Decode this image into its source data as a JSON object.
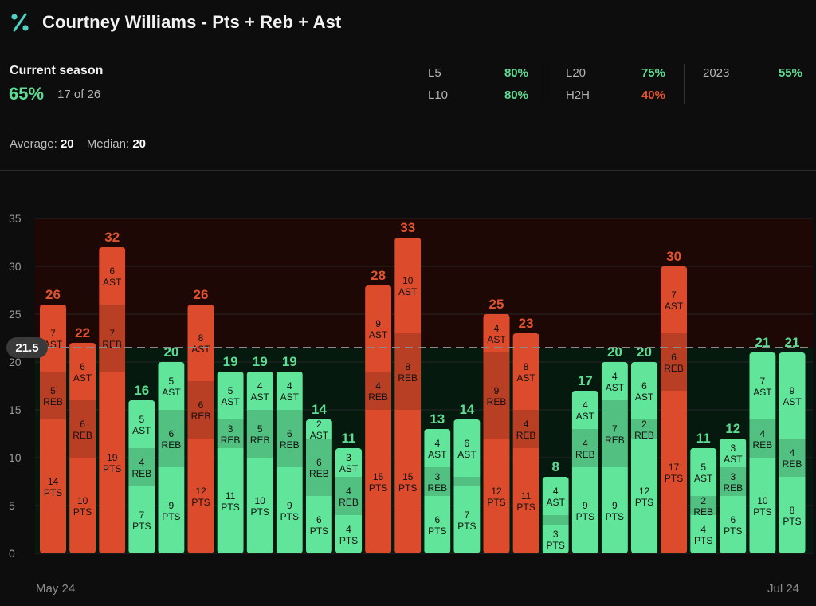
{
  "header": {
    "title": "Courtney Williams - Pts + Reb + Ast",
    "icon": "percent-icon"
  },
  "summary": {
    "season_label": "Current season",
    "season_pct": "65%",
    "season_count": "17 of 26",
    "stats": [
      {
        "label": "L5",
        "value": "80%",
        "status": "good"
      },
      {
        "label": "L10",
        "value": "80%",
        "status": "good"
      },
      {
        "label": "L20",
        "value": "75%",
        "status": "good"
      },
      {
        "label": "H2H",
        "value": "40%",
        "status": "bad"
      },
      {
        "label": "2023",
        "value": "55%",
        "status": "good"
      }
    ]
  },
  "averages": {
    "average_label": "Average:",
    "average_value": "20",
    "median_label": "Median:",
    "median_value": "20"
  },
  "chart_data": {
    "type": "bar",
    "stacked": true,
    "ylim": [
      0,
      35
    ],
    "yticks": [
      0,
      5,
      10,
      15,
      20,
      25,
      30,
      35
    ],
    "threshold": 21.5,
    "threshold_label": "21.5",
    "x_start_label": "May 24",
    "x_end_label": "Jul 24",
    "segment_labels": {
      "pts": "PTS",
      "reb": "REB",
      "ast": "AST"
    },
    "colors": {
      "over": "#dc4b2b",
      "under": "#61e59a",
      "over_label": "#e0532e",
      "under_label": "#5ddc93",
      "over_zone": "#1d0806",
      "under_zone": "#05190f"
    },
    "games": [
      {
        "total": 26,
        "pts": 14,
        "reb": 5,
        "ast": 7
      },
      {
        "total": 22,
        "pts": 10,
        "reb": 6,
        "ast": 6
      },
      {
        "total": 32,
        "pts": 19,
        "reb": 7,
        "ast": 6
      },
      {
        "total": 16,
        "pts": 7,
        "reb": 4,
        "ast": 5
      },
      {
        "total": 20,
        "pts": 9,
        "reb": 6,
        "ast": 5
      },
      {
        "total": 26,
        "pts": 12,
        "reb": 6,
        "ast": 8
      },
      {
        "total": 19,
        "pts": 11,
        "reb": 3,
        "ast": 5
      },
      {
        "total": 19,
        "pts": 10,
        "reb": 5,
        "ast": 4
      },
      {
        "total": 19,
        "pts": 9,
        "reb": 6,
        "ast": 4
      },
      {
        "total": 14,
        "pts": 6,
        "reb": 6,
        "ast": 2
      },
      {
        "total": 11,
        "pts": 4,
        "reb": 4,
        "ast": 3
      },
      {
        "total": 28,
        "pts": 15,
        "reb": 4,
        "ast": 9
      },
      {
        "total": 33,
        "pts": 15,
        "reb": 8,
        "ast": 10
      },
      {
        "total": 13,
        "pts": 6,
        "reb": 3,
        "ast": 4
      },
      {
        "total": 14,
        "pts": 7,
        "reb": 1,
        "ast": 6
      },
      {
        "total": 25,
        "pts": 12,
        "reb": 9,
        "ast": 4
      },
      {
        "total": 23,
        "pts": 11,
        "reb": 4,
        "ast": 8
      },
      {
        "total": 8,
        "pts": 3,
        "reb": 1,
        "ast": 4
      },
      {
        "total": 17,
        "pts": 9,
        "reb": 4,
        "ast": 4
      },
      {
        "total": 20,
        "pts": 9,
        "reb": 7,
        "ast": 4
      },
      {
        "total": 20,
        "pts": 12,
        "reb": 2,
        "ast": 6
      },
      {
        "total": 30,
        "pts": 17,
        "reb": 6,
        "ast": 7
      },
      {
        "total": 11,
        "pts": 4,
        "reb": 2,
        "ast": 5
      },
      {
        "total": 12,
        "pts": 6,
        "reb": 3,
        "ast": 3
      },
      {
        "total": 21,
        "pts": 10,
        "reb": 4,
        "ast": 7
      },
      {
        "total": 21,
        "pts": 8,
        "reb": 4,
        "ast": 9
      }
    ]
  }
}
